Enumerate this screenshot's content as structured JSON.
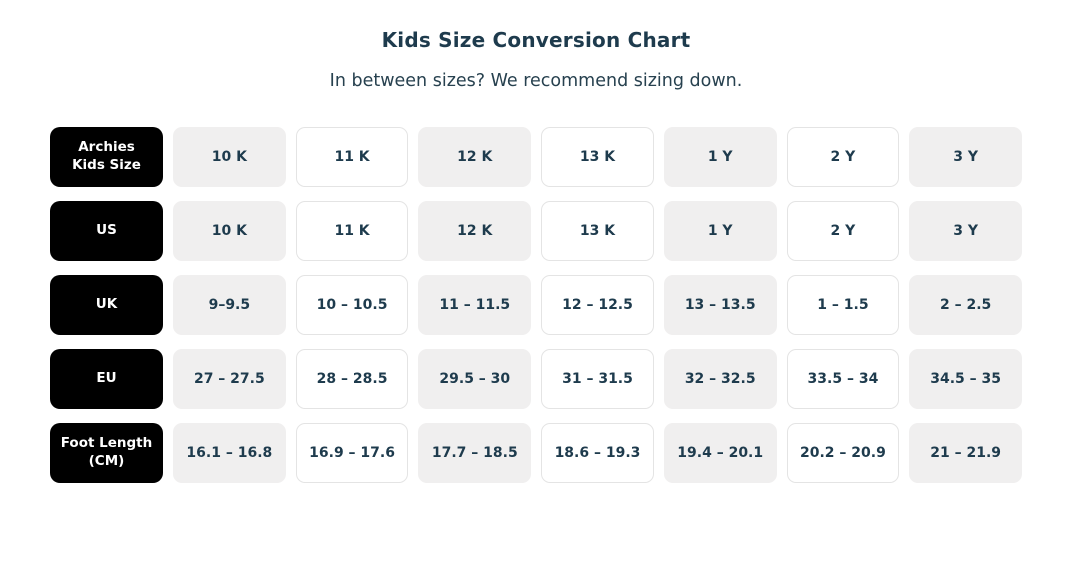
{
  "header": {
    "title": "Kids Size Conversion Chart",
    "subtitle": "In between sizes? We recommend sizing down."
  },
  "colors": {
    "heading_text": "#1e3b4d",
    "cell_text": "#1e3b4d",
    "row_label_bg": "#000000",
    "row_label_text": "#ffffff",
    "cell_alt_bg": "#f0efef",
    "cell_plain_border": "#e4e4e4"
  },
  "chart_data": {
    "type": "table",
    "title": "Kids Size Conversion Chart",
    "subtitle": "In between sizes? We recommend sizing down.",
    "row_headers": [
      "Archies Kids Size",
      "US",
      "UK",
      "EU",
      "Foot Length (CM)"
    ],
    "rows": [
      {
        "label": "Archies Kids Size",
        "label_lines": [
          "Archies",
          "Kids Size"
        ],
        "values": [
          "10 K",
          "11 K",
          "12 K",
          "13 K",
          "1 Y",
          "2 Y",
          "3 Y"
        ]
      },
      {
        "label": "US",
        "label_lines": [
          "US"
        ],
        "values": [
          "10 K",
          "11 K",
          "12 K",
          "13 K",
          "1 Y",
          "2 Y",
          "3 Y"
        ]
      },
      {
        "label": "UK",
        "label_lines": [
          "UK"
        ],
        "values": [
          "9–9.5",
          "10 – 10.5",
          "11 – 11.5",
          "12 – 12.5",
          "13 – 13.5",
          "1 – 1.5",
          "2 – 2.5"
        ]
      },
      {
        "label": "EU",
        "label_lines": [
          "EU"
        ],
        "values": [
          "27 – 27.5",
          "28 – 28.5",
          "29.5 – 30",
          "31 – 31.5",
          "32 – 32.5",
          "33.5 – 34",
          "34.5 – 35"
        ]
      },
      {
        "label": "Foot Length (CM)",
        "label_lines": [
          "Foot Length",
          "(CM)"
        ],
        "values": [
          "16.1 – 16.8",
          "16.9 – 17.6",
          "17.7 – 18.5",
          "18.6 – 19.3",
          "19.4 – 20.1",
          "20.2 – 20.9",
          "21 – 21.9"
        ]
      }
    ]
  }
}
